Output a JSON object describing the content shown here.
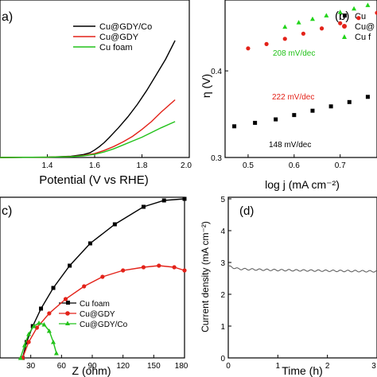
{
  "chart_data": [
    {
      "panel": "a",
      "type": "line",
      "panel_label": "a)",
      "xlabel": "Potential (V vs RHE)",
      "ylabel": "",
      "xlim": [
        1.2,
        2.0
      ],
      "ylim": [
        0,
        1
      ],
      "grid": false,
      "legend_position": "top-right",
      "x_ticks": [
        "1.4",
        "1.6",
        "1.8",
        "2.0"
      ],
      "series": [
        {
          "name": "Cu@GDY/Co",
          "color": "#000000",
          "x": [
            1.2,
            1.4,
            1.5,
            1.55,
            1.58,
            1.6,
            1.62,
            1.64,
            1.66,
            1.7,
            1.74,
            1.78,
            1.82,
            1.86,
            1.9,
            1.94
          ],
          "y": [
            0.0,
            0.002,
            0.008,
            0.018,
            0.03,
            0.048,
            0.07,
            0.095,
            0.125,
            0.19,
            0.26,
            0.34,
            0.43,
            0.53,
            0.63,
            0.75
          ]
        },
        {
          "name": "Cu@GDY",
          "color": "#e32219",
          "x": [
            1.2,
            1.4,
            1.5,
            1.55,
            1.6,
            1.64,
            1.68,
            1.72,
            1.76,
            1.8,
            1.84,
            1.88,
            1.94
          ],
          "y": [
            0.0,
            0.002,
            0.006,
            0.012,
            0.025,
            0.045,
            0.07,
            0.1,
            0.135,
            0.18,
            0.23,
            0.29,
            0.37
          ]
        },
        {
          "name": "Cu foam",
          "color": "#22c21a",
          "x": [
            1.2,
            1.4,
            1.5,
            1.55,
            1.6,
            1.64,
            1.68,
            1.72,
            1.76,
            1.8,
            1.84,
            1.88,
            1.94
          ],
          "y": [
            0.0,
            0.002,
            0.005,
            0.01,
            0.02,
            0.035,
            0.055,
            0.08,
            0.105,
            0.13,
            0.16,
            0.19,
            0.23
          ]
        }
      ]
    },
    {
      "panel": "b",
      "type": "scatter",
      "panel_label": "(b)",
      "xlabel": "log j (mA cm⁻²)",
      "ylabel": "η (V)",
      "xlim": [
        0.45,
        0.78
      ],
      "ylim": [
        0.3,
        0.48
      ],
      "grid": false,
      "legend_position": "top-right",
      "x_ticks": [
        0.5,
        0.6,
        0.7
      ],
      "y_ticks": [
        0.3,
        0.4
      ],
      "legend_labels": [
        "Cu",
        "Cu@",
        "Cu f"
      ],
      "annotations": [
        "208 mV/dec",
        "222 mV/dec",
        "148 mV/dec"
      ],
      "series": [
        {
          "name": "Cu",
          "color": "#000000",
          "marker": "square",
          "x": [
            0.47,
            0.515,
            0.56,
            0.6,
            0.64,
            0.68,
            0.72,
            0.76
          ],
          "y": [
            0.336,
            0.34,
            0.344,
            0.349,
            0.354,
            0.359,
            0.364,
            0.37
          ]
        },
        {
          "name": "Cu@",
          "color": "#e32219",
          "marker": "circle",
          "x": [
            0.5,
            0.54,
            0.58,
            0.62,
            0.66,
            0.7,
            0.74,
            0.78
          ],
          "y": [
            0.426,
            0.431,
            0.437,
            0.443,
            0.449,
            0.455,
            0.461,
            0.467
          ]
        },
        {
          "name": "Cu f",
          "color": "#22d41a",
          "marker": "triangle",
          "x": [
            0.58,
            0.61,
            0.64,
            0.67,
            0.7,
            0.73,
            0.76
          ],
          "y": [
            0.451,
            0.456,
            0.46,
            0.464,
            0.468,
            0.472,
            0.476
          ]
        }
      ]
    },
    {
      "panel": "c",
      "type": "line",
      "panel_label": "c)",
      "xlabel": "Z (ohm)",
      "ylabel": "",
      "xlim": [
        0,
        180
      ],
      "ylim": [
        0,
        1
      ],
      "grid": false,
      "legend_position": "bottom-left",
      "x_ticks": [
        30,
        60,
        90,
        120,
        150,
        180
      ],
      "series": [
        {
          "name": "Cu foam",
          "color": "#000000",
          "marker": "square",
          "x": [
            22,
            26,
            32,
            40,
            52,
            68,
            88,
            112,
            140,
            160,
            180
          ],
          "y": [
            0.0,
            0.1,
            0.2,
            0.31,
            0.44,
            0.58,
            0.72,
            0.84,
            0.95,
            0.99,
            1.0
          ]
        },
        {
          "name": "Cu@GDY",
          "color": "#e32219",
          "marker": "circle",
          "x": [
            22,
            28,
            36,
            48,
            64,
            82,
            100,
            120,
            140,
            155,
            170,
            180
          ],
          "y": [
            0.0,
            0.1,
            0.19,
            0.28,
            0.37,
            0.45,
            0.51,
            0.55,
            0.57,
            0.58,
            0.57,
            0.55
          ]
        },
        {
          "name": "Cu@GDY/Co",
          "color": "#22c21a",
          "marker": "triangle",
          "x": [
            20,
            24,
            28,
            33,
            38,
            43,
            48,
            52,
            55
          ],
          "y": [
            0.0,
            0.08,
            0.15,
            0.2,
            0.22,
            0.21,
            0.17,
            0.1,
            0.03
          ]
        }
      ]
    },
    {
      "panel": "d",
      "type": "line",
      "panel_label": "(d)",
      "xlabel": "Time (h)",
      "ylabel": "Current density (mA cm⁻²)",
      "xlim": [
        0,
        3
      ],
      "ylim": [
        0,
        5
      ],
      "grid": false,
      "x_ticks": [
        0,
        1,
        2,
        3
      ],
      "y_ticks": [
        0,
        1,
        2,
        3,
        4,
        5
      ],
      "series": [
        {
          "name": "",
          "color": "#555555",
          "x": [
            0,
            0.2,
            0.5,
            1.0,
            1.5,
            2.0,
            2.5,
            3.0
          ],
          "y": [
            2.88,
            2.8,
            2.78,
            2.76,
            2.75,
            2.74,
            2.73,
            2.72
          ]
        }
      ]
    }
  ]
}
